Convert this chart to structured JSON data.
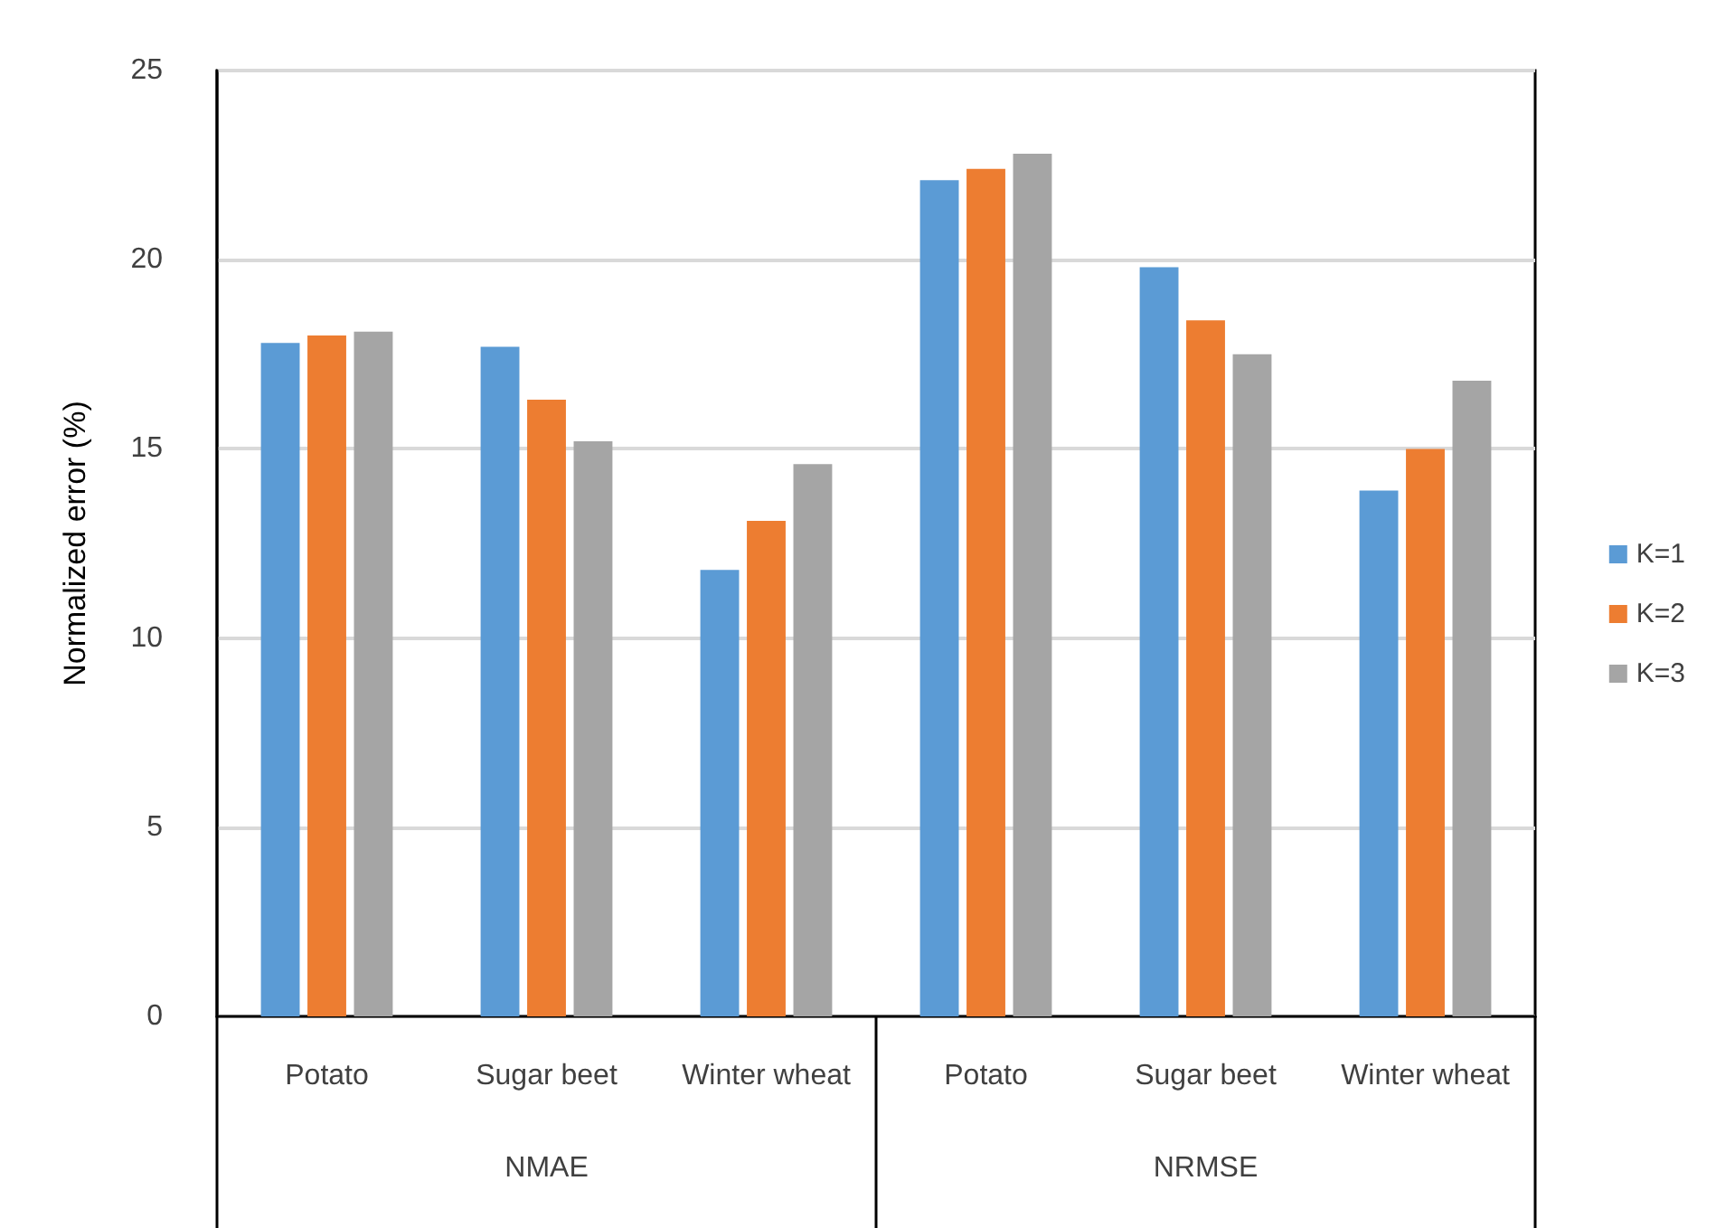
{
  "chart_data": {
    "type": "bar",
    "ylabel": "Normalized error (%)",
    "categories": [
      "Potato",
      "Sugar beet",
      "Winter wheat",
      "Potato",
      "Sugar beet",
      "Winter wheat"
    ],
    "series": [
      {
        "name": "K=1",
        "color": "#5b9bd5",
        "values": [
          17.8,
          17.7,
          11.8,
          22.1,
          19.8,
          13.9
        ]
      },
      {
        "name": "K=2",
        "color": "#ed7d31",
        "values": [
          18.0,
          16.3,
          13.1,
          22.4,
          18.4,
          15.0
        ]
      },
      {
        "name": "K=3",
        "color": "#a5a5a5",
        "values": [
          18.1,
          15.2,
          14.6,
          22.8,
          17.5,
          16.8
        ]
      }
    ],
    "annotations": [
      "NMAE",
      "NRMSE"
    ],
    "ylim": [
      0,
      25
    ],
    "yticks": [
      0,
      5,
      10,
      15,
      20,
      25
    ],
    "grid": "y",
    "legend": "right"
  }
}
